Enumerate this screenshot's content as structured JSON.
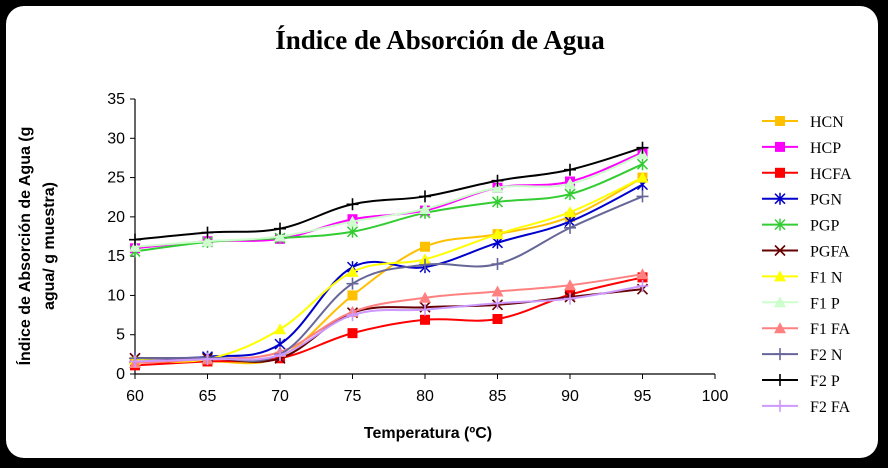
{
  "chart_data": {
    "type": "line",
    "title": "Índice de Absorción de Agua",
    "xlabel": "Temperatura (ºC)",
    "ylabel_lines": [
      "Índice de Absorción de Agua (g",
      "agua/ g muestra)"
    ],
    "x": [
      60,
      65,
      70,
      75,
      80,
      85,
      90,
      95
    ],
    "xlim": [
      60,
      100
    ],
    "ylim": [
      0,
      35
    ],
    "xticks": [
      60,
      65,
      70,
      75,
      80,
      85,
      90,
      95,
      100
    ],
    "yticks": [
      0,
      5,
      10,
      15,
      20,
      25,
      30,
      35
    ],
    "grid": false,
    "legend_position": "right",
    "series": [
      {
        "name": "HCN",
        "color": "#FFC000",
        "marker": "square",
        "values": [
          1.5,
          1.6,
          2.2,
          10.0,
          16.2,
          17.8,
          20.0,
          25.0
        ]
      },
      {
        "name": "HCP",
        "color": "#FF00FF",
        "marker": "square",
        "values": [
          16.0,
          16.9,
          17.2,
          19.7,
          20.8,
          23.7,
          24.5,
          28.2
        ]
      },
      {
        "name": "HCFA",
        "color": "#FF0000",
        "marker": "square",
        "values": [
          1.1,
          1.6,
          2.0,
          5.2,
          6.9,
          7.0,
          10.1,
          12.3
        ]
      },
      {
        "name": "PGN",
        "color": "#0000CC",
        "marker": "star",
        "values": [
          2.0,
          2.2,
          3.8,
          13.6,
          13.6,
          16.7,
          19.4,
          24.1
        ]
      },
      {
        "name": "PGP",
        "color": "#33CC33",
        "marker": "star",
        "values": [
          15.6,
          16.8,
          17.3,
          18.1,
          20.5,
          21.9,
          22.9,
          26.7
        ]
      },
      {
        "name": "PGFA",
        "color": "#660000",
        "marker": "x",
        "values": [
          2.0,
          2.0,
          2.0,
          7.8,
          8.5,
          8.8,
          9.8,
          10.8
        ]
      },
      {
        "name": "F1 N",
        "color": "#FFFF00",
        "marker": "triangle",
        "values": [
          1.8,
          1.9,
          5.7,
          13.0,
          14.6,
          17.8,
          20.6,
          25.0
        ]
      },
      {
        "name": "F1 P",
        "color": "#CCFFCC",
        "marker": "triangle",
        "values": [
          16.2,
          16.9,
          17.5,
          19.4,
          21.0,
          23.7,
          24.2,
          28.0
        ]
      },
      {
        "name": "F1 FA",
        "color": "#FF8080",
        "marker": "triangle",
        "values": [
          1.4,
          1.9,
          2.8,
          7.9,
          9.7,
          10.5,
          11.3,
          12.7
        ]
      },
      {
        "name": "F2 N",
        "color": "#666699",
        "marker": "plus",
        "values": [
          2.0,
          2.1,
          2.5,
          11.5,
          13.9,
          14.0,
          18.6,
          22.6
        ]
      },
      {
        "name": "F2 P",
        "color": "#000000",
        "marker": "plus",
        "values": [
          17.1,
          18.0,
          18.5,
          21.6,
          22.6,
          24.6,
          26.0,
          28.8
        ]
      },
      {
        "name": "F2 FA",
        "color": "#CC99FF",
        "marker": "plus",
        "values": [
          1.6,
          1.9,
          2.4,
          7.5,
          8.2,
          9.0,
          9.6,
          11.2
        ]
      }
    ]
  }
}
